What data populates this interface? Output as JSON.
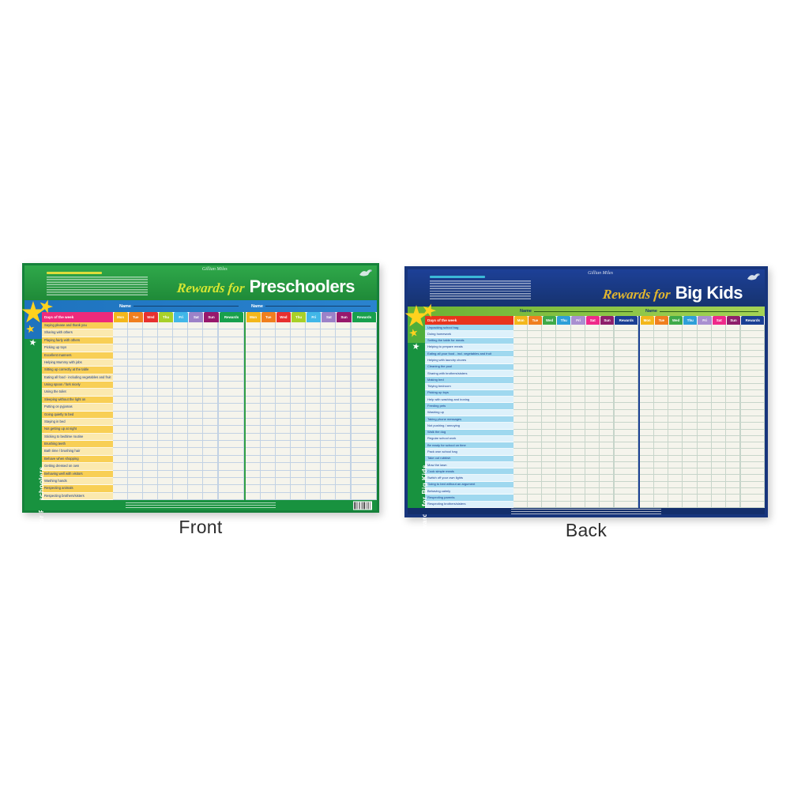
{
  "page": {
    "captions": {
      "front": "Front",
      "back": "Back"
    }
  },
  "charts": [
    {
      "side_label": "Rewards for Preschoolers",
      "brand": "Gillian Miles",
      "title_script": "Rewards for",
      "title_main": "Preschoolers",
      "name_label": "Name",
      "days_header": "Days of the week",
      "days": [
        "Mon",
        "Tue",
        "Wed",
        "Thu",
        "Fri",
        "Sat",
        "Sun"
      ],
      "rewards_label": "Rewards",
      "tasks": [
        "Saying please and thank you",
        "Sharing with others",
        "Playing fairly with others",
        "Picking up toys",
        "Excellent manners",
        "Helping Mummy with jobs",
        "Sitting up correctly at the table",
        "Eating all food - including vegetables and fruit",
        "Using spoon / fork nicely",
        "Using the toilet",
        "Sleeping without the light on",
        "Putting on pyjamas",
        "Going quietly to bed",
        "Staying in bed",
        "Not getting up at night",
        "Sticking to bedtime routine",
        "Brushing teeth",
        "Bath time / brushing hair",
        "Behave when shopping",
        "Getting dressed on own",
        "Behaving well with visitors",
        "Washing hands",
        "Respecting animals",
        "Respecting brothers/sisters"
      ],
      "theme": {
        "frame": "#15813a",
        "header_bg_top": "#2fa84a",
        "header_bg_bottom": "#1f8a38",
        "instr_heading": "#f2e23a",
        "script_color": "#d6e632",
        "title_color": "#ffffff",
        "band_bg": "#1e73be",
        "band_bg2": "#2a83cf",
        "band_text": "#ffffff",
        "band_line": "#12406e",
        "sidebar_bg": "#18923f",
        "corner_bg": "#1e73be",
        "star_color": "#ffd21e",
        "star_alt": "#ffffff",
        "days_header_bg": "#ee2a7b",
        "days_header_text": "#ffffff",
        "row_odd": "#f8cf55",
        "row_even": "#fbe9af",
        "task_text": "#173a8a",
        "grid_bg": "#f5f4ec",
        "grid_line": "#c2d2e4",
        "divider": "#2f9e44",
        "rewards_color": "#18a04c",
        "footer_bg": "#18923f",
        "day_colors": [
          "#f3b71b",
          "#f07f1f",
          "#e73030",
          "#a8d029",
          "#41b7e8",
          "#9c82c8",
          "#97186c"
        ]
      }
    },
    {
      "side_label": "Rewards for Big Kids",
      "brand": "Gillian Miles",
      "title_script": "Rewards for",
      "title_main": "Big Kids",
      "name_label": "Name",
      "days_header": "Days of the week",
      "days": [
        "Mon",
        "Tue",
        "Wed",
        "Thu",
        "Fri",
        "Sat",
        "Sun"
      ],
      "rewards_label": "Rewards",
      "tasks": [
        "Unpacking school bag",
        "Doing homework",
        "Setting the table for meals",
        "Helping to prepare meals",
        "Eating all your food - incl. vegetables and fruit",
        "Helping with laundry chores",
        "Cleaning the pool",
        "Sharing with brothers/sisters",
        "Making bed",
        "Tidying bedroom",
        "Picking up toys",
        "Help with washing and ironing",
        "Feeding pets",
        "Washing up",
        "Taking phone messages",
        "Not pushing / annoying",
        "Walk the dog",
        "Regular school work",
        "Be ready for school on time",
        "Pack own school bag",
        "Take out rubbish",
        "Mow the lawn",
        "Cook simple meals",
        "Switch off your own lights",
        "Going to bed without an argument",
        "Behaving calmly",
        "Respecting parents",
        "Respecting brothers/sisters"
      ],
      "theme": {
        "frame": "#17357c",
        "header_bg_top": "#1d4097",
        "header_bg_bottom": "#16336f",
        "instr_heading": "#3fc6e0",
        "script_color": "#e3b72e",
        "title_color": "#ffffff",
        "band_bg": "#6ab233",
        "band_bg2": "#a5d355",
        "band_text": "#13386b",
        "band_line": "#2a5c18",
        "sidebar_bg": "#18923f",
        "corner_bg": "#4fae3b",
        "star_color": "#ffd21e",
        "star_alt": "#ffffff",
        "days_header_bg": "#e8341c",
        "days_header_text": "#ffffff",
        "row_odd": "#9fd8ef",
        "row_even": "#ddf1fb",
        "task_text": "#143a8c",
        "grid_bg": "#f5f4ec",
        "grid_line": "#c7d5ca",
        "divider": "#1b3f94",
        "rewards_color": "#1b3f94",
        "footer_bg": "#132e6b",
        "day_colors": [
          "#f3b71b",
          "#f07f1f",
          "#3faa49",
          "#2e9fd8",
          "#a98fd0",
          "#ef2a8a",
          "#8e1f6b"
        ]
      }
    }
  ]
}
